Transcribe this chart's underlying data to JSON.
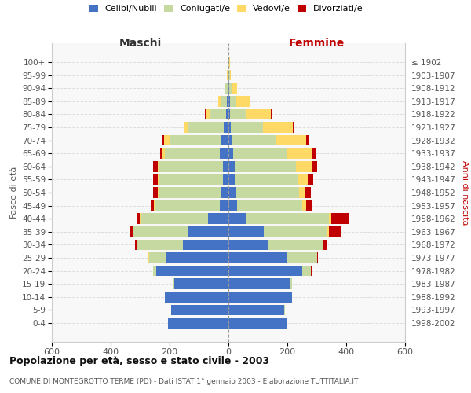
{
  "age_groups": [
    "0-4",
    "5-9",
    "10-14",
    "15-19",
    "20-24",
    "25-29",
    "30-34",
    "35-39",
    "40-44",
    "45-49",
    "50-54",
    "55-59",
    "60-64",
    "65-69",
    "70-74",
    "75-79",
    "80-84",
    "85-89",
    "90-94",
    "95-99",
    "100+"
  ],
  "birth_years": [
    "1998-2002",
    "1993-1997",
    "1988-1992",
    "1983-1987",
    "1978-1982",
    "1973-1977",
    "1968-1972",
    "1963-1967",
    "1958-1962",
    "1953-1957",
    "1948-1952",
    "1943-1947",
    "1938-1942",
    "1933-1937",
    "1928-1932",
    "1923-1927",
    "1918-1922",
    "1913-1917",
    "1908-1912",
    "1903-1907",
    "≤ 1902"
  ],
  "maschi": {
    "celibi": [
      205,
      195,
      215,
      185,
      245,
      210,
      155,
      140,
      70,
      30,
      25,
      20,
      20,
      30,
      25,
      15,
      8,
      5,
      2,
      1,
      0
    ],
    "coniugati": [
      0,
      0,
      1,
      3,
      10,
      60,
      155,
      185,
      230,
      220,
      210,
      215,
      215,
      185,
      175,
      120,
      55,
      20,
      8,
      3,
      2
    ],
    "vedovi": [
      0,
      0,
      0,
      0,
      0,
      2,
      0,
      1,
      2,
      3,
      5,
      5,
      5,
      10,
      20,
      15,
      15,
      10,
      4,
      1,
      0
    ],
    "divorziati": [
      0,
      0,
      0,
      0,
      2,
      2,
      8,
      10,
      10,
      12,
      15,
      15,
      15,
      8,
      5,
      3,
      2,
      0,
      0,
      0,
      0
    ]
  },
  "femmine": {
    "nubili": [
      200,
      190,
      215,
      210,
      250,
      200,
      135,
      120,
      60,
      30,
      25,
      20,
      20,
      15,
      10,
      8,
      5,
      5,
      2,
      1,
      0
    ],
    "coniugate": [
      0,
      1,
      2,
      5,
      30,
      100,
      185,
      215,
      280,
      220,
      215,
      215,
      210,
      185,
      150,
      110,
      55,
      20,
      8,
      3,
      2
    ],
    "vedove": [
      0,
      0,
      0,
      0,
      0,
      2,
      2,
      5,
      10,
      15,
      20,
      35,
      55,
      85,
      105,
      100,
      85,
      50,
      20,
      5,
      2
    ],
    "divorziate": [
      0,
      0,
      0,
      0,
      2,
      3,
      15,
      45,
      60,
      18,
      20,
      18,
      15,
      10,
      8,
      5,
      2,
      0,
      0,
      0,
      0
    ]
  },
  "colors": {
    "celibi": "#4472C4",
    "coniugati": "#c5d9a0",
    "vedovi": "#FFD966",
    "divorziati": "#C00000"
  },
  "xlim": 600,
  "title": "Popolazione per età, sesso e stato civile - 2003",
  "subtitle": "COMUNE DI MONTEGROTTO TERME (PD) - Dati ISTAT 1° gennaio 2003 - Elaborazione TUTTITALIA.IT",
  "ylabel_left": "Fasce di età",
  "ylabel_right": "Anni di nascita",
  "xlabel_left": "Maschi",
  "xlabel_right": "Femmine"
}
